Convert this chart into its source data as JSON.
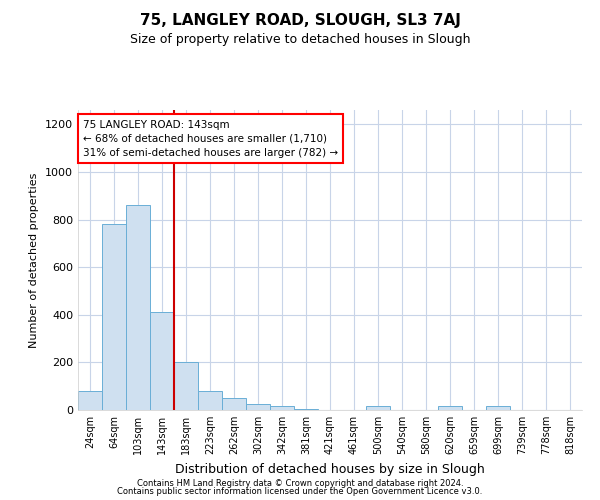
{
  "title": "75, LANGLEY ROAD, SLOUGH, SL3 7AJ",
  "subtitle": "Size of property relative to detached houses in Slough",
  "xlabel": "Distribution of detached houses by size in Slough",
  "ylabel": "Number of detached properties",
  "footer1": "Contains HM Land Registry data © Crown copyright and database right 2024.",
  "footer2": "Contains public sector information licensed under the Open Government Licence v3.0.",
  "categories": [
    "24sqm",
    "64sqm",
    "103sqm",
    "143sqm",
    "183sqm",
    "223sqm",
    "262sqm",
    "302sqm",
    "342sqm",
    "381sqm",
    "421sqm",
    "461sqm",
    "500sqm",
    "540sqm",
    "580sqm",
    "620sqm",
    "659sqm",
    "699sqm",
    "739sqm",
    "778sqm",
    "818sqm"
  ],
  "values": [
    80,
    780,
    860,
    410,
    200,
    80,
    50,
    25,
    15,
    5,
    0,
    0,
    15,
    0,
    0,
    15,
    0,
    15,
    0,
    0,
    0
  ],
  "bar_color": "#cfe0f0",
  "bar_edge_color": "#6aaed6",
  "highlight_index": 3,
  "highlight_color": "#cc0000",
  "ylim": [
    0,
    1260
  ],
  "yticks": [
    0,
    200,
    400,
    600,
    800,
    1000,
    1200
  ],
  "annotation_line1": "75 LANGLEY ROAD: 143sqm",
  "annotation_line2": "← 68% of detached houses are smaller (1,710)",
  "annotation_line3": "31% of semi-detached houses are larger (782) →",
  "bg_color": "#ffffff",
  "grid_color": "#c8d4e8",
  "title_fontsize": 11,
  "subtitle_fontsize": 9,
  "axis_fontsize": 8,
  "tick_fontsize": 8,
  "footer_fontsize": 6
}
